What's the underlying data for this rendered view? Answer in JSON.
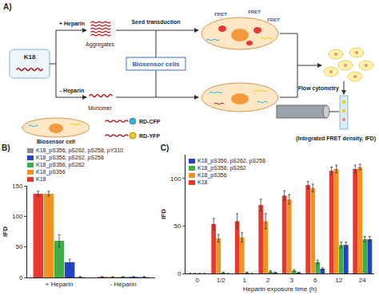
{
  "diagram": {
    "panel": "A)",
    "protein": "K18",
    "branches": [
      "+ Heparin",
      "- Heparin"
    ],
    "species": [
      "Aggregates",
      "Monomer"
    ],
    "step": "Seed transduction",
    "cells_box": "Biosensor cells",
    "fret": [
      "FRET",
      "FRET",
      "FRET"
    ],
    "readout": "Flow cytometry",
    "readout_result": "(Integrated FRET density, IFD)",
    "legend_cell": "Biosensor cell",
    "reporters": [
      {
        "label": "RD-CFP",
        "color": "#29b6e6"
      },
      {
        "label": "RD-YFP",
        "color": "#f2cf00"
      }
    ]
  },
  "chart_data": [
    {
      "type": "bar",
      "title": "B)",
      "y_label": "IFD",
      "categories": [
        "+ Heparin",
        "- Heparin"
      ],
      "ylim": [
        0,
        150
      ],
      "yticks": [
        0,
        50,
        100,
        150
      ],
      "grid": false,
      "legend": "top",
      "series": [
        {
          "name": "K18",
          "color": "#e8392f",
          "values": [
            137,
            1
          ],
          "error": [
            4,
            0.5
          ]
        },
        {
          "name": "K18_pS356",
          "color": "#f39221",
          "values": [
            137,
            1
          ],
          "error": [
            4,
            0.5
          ]
        },
        {
          "name": "K18_pS356, pS262",
          "color": "#3fae49",
          "values": [
            60,
            1
          ],
          "error": [
            10,
            0.5
          ]
        },
        {
          "name": "K18_pS356, pS262, pS258",
          "color": "#2442c4",
          "values": [
            25,
            1
          ],
          "error": [
            5,
            0.5
          ]
        },
        {
          "name": "K18_pS356, pS262, pS258, pY310",
          "color": "#8c8c8c",
          "values": [
            1,
            1
          ],
          "error": [
            0.5,
            0.5
          ]
        }
      ]
    },
    {
      "type": "bar",
      "title": "C)",
      "x_label": "Heparin exposure time (h)",
      "y_label": "IFD",
      "categories": [
        "0",
        "1/2",
        "1",
        "2",
        "3",
        "6",
        "12",
        "24"
      ],
      "ylim": [
        0,
        125
      ],
      "yticks": [
        0,
        50,
        100
      ],
      "grid": false,
      "legend": "upper left",
      "series": [
        {
          "name": "K18",
          "color": "#e8392f",
          "values": [
            0,
            52,
            55,
            72,
            82,
            93,
            108,
            110
          ],
          "error": [
            0,
            6,
            8,
            6,
            5,
            4,
            4,
            4
          ]
        },
        {
          "name": "K18_pS356",
          "color": "#f39221",
          "values": [
            0,
            37,
            38,
            55,
            78,
            90,
            110,
            112
          ],
          "error": [
            0,
            4,
            5,
            8,
            5,
            4,
            4,
            3
          ]
        },
        {
          "name": "K18_pS356, pS262",
          "color": "#3fae49",
          "values": [
            0,
            1,
            1,
            2,
            3,
            12,
            30,
            36
          ],
          "error": [
            0,
            0.5,
            0.5,
            1,
            1,
            2,
            3,
            3
          ]
        },
        {
          "name": "K18_pS356, pS262, pS258",
          "color": "#2442c4",
          "values": [
            0,
            0,
            0,
            1,
            1,
            5,
            30,
            36
          ],
          "error": [
            0,
            0,
            0,
            0.5,
            0.5,
            1,
            3,
            3
          ]
        }
      ]
    }
  ]
}
